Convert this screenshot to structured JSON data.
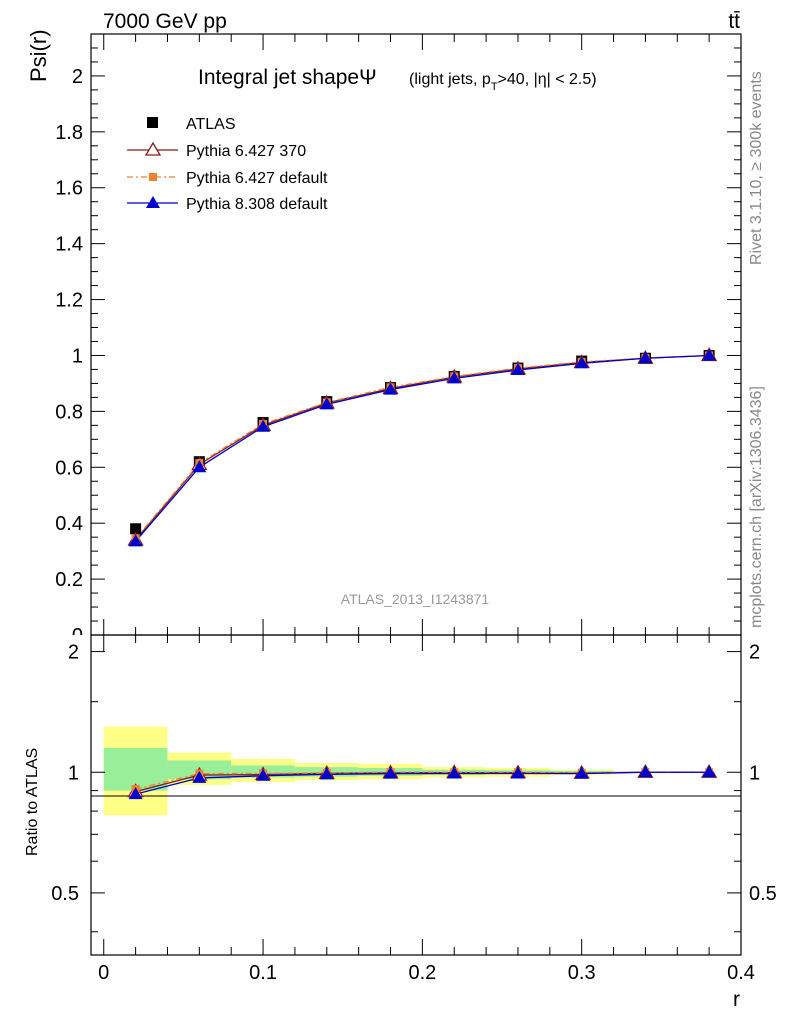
{
  "header": {
    "energy_label": "7000 GeV pp",
    "process_label": "tt̄"
  },
  "side_labels": {
    "rivet": "Rivet 3.1.10, ≥ 300k events",
    "mcplots": "mcplots.cern.ch [arXiv:1306.3436]"
  },
  "chart_data": [
    {
      "type": "scatter",
      "panel": "main",
      "title_main": "Integral jet shape",
      "title_symbol": "Ψ",
      "title_cuts": "(light jets, p",
      "title_cuts_sub": "T",
      "title_cuts_rest": ">40, |η| < 2.5)",
      "ylabel": "Psi(r)",
      "xlabel": "",
      "watermark": "ATLAS_2013_I1243871",
      "xlim": [
        -0.008,
        0.4
      ],
      "ylim": [
        0,
        2.15
      ],
      "grid": false,
      "legend_position": "top-left",
      "x_ticks": [
        0,
        0.1,
        0.2,
        0.3,
        0.4
      ],
      "y_ticks": [
        0.2,
        0.4,
        0.6,
        0.8,
        1,
        1.2,
        1.4,
        1.6,
        1.8,
        2
      ],
      "x": [
        0.02,
        0.06,
        0.1,
        0.14,
        0.18,
        0.22,
        0.26,
        0.3,
        0.34,
        0.38
      ],
      "series": [
        {
          "name": "ATLAS",
          "marker": "square",
          "color": "#000000",
          "values": [
            0.38,
            0.62,
            0.76,
            0.835,
            0.885,
            0.925,
            0.955,
            0.98,
            0.99,
            1.0
          ]
        },
        {
          "name": "Pythia 6.427 370",
          "marker": "triangle-open",
          "color": "#8b1a1a",
          "values": [
            0.34,
            0.61,
            0.75,
            0.83,
            0.882,
            0.923,
            0.952,
            0.975,
            0.99,
            1.0
          ]
        },
        {
          "name": "Pythia 6.427 default",
          "marker": "square-small",
          "color": "#f08030",
          "dash": "dashdot",
          "values": [
            0.345,
            0.615,
            0.755,
            0.832,
            0.886,
            0.925,
            0.955,
            0.977,
            0.991,
            1.0
          ]
        },
        {
          "name": "Pythia 8.308 default",
          "marker": "triangle",
          "color": "#0000cc",
          "values": [
            0.335,
            0.6,
            0.745,
            0.825,
            0.878,
            0.918,
            0.948,
            0.972,
            0.99,
            1.0
          ]
        }
      ]
    },
    {
      "type": "scatter",
      "panel": "ratio",
      "ylabel": "Ratio to ATLAS",
      "xlabel": "r",
      "xlim": [
        -0.008,
        0.4
      ],
      "ylim": [
        0.35,
        2.2
      ],
      "grid": false,
      "x_ticks": [
        0,
        0.1,
        0.2,
        0.3,
        0.4
      ],
      "y_ticks": [
        0.5,
        1,
        2
      ],
      "bins": [
        [
          0,
          0.04
        ],
        [
          0.04,
          0.08
        ],
        [
          0.08,
          0.12
        ],
        [
          0.12,
          0.16
        ],
        [
          0.16,
          0.2
        ],
        [
          0.2,
          0.24
        ],
        [
          0.24,
          0.28
        ],
        [
          0.28,
          0.32
        ],
        [
          0.32,
          0.36
        ],
        [
          0.36,
          0.4
        ]
      ],
      "band_inner": [
        [
          0.9,
          1.15
        ],
        [
          0.96,
          1.07
        ],
        [
          0.97,
          1.04
        ],
        [
          0.975,
          1.03
        ],
        [
          0.98,
          1.025
        ],
        [
          0.985,
          1.015
        ],
        [
          0.99,
          1.012
        ],
        [
          0.993,
          1.008
        ],
        [
          0.997,
          1.003
        ],
        [
          1.0,
          1.0
        ]
      ],
      "band_outer": [
        [
          0.78,
          1.3
        ],
        [
          0.93,
          1.12
        ],
        [
          0.945,
          1.08
        ],
        [
          0.955,
          1.055
        ],
        [
          0.96,
          1.05
        ],
        [
          0.97,
          1.03
        ],
        [
          0.975,
          1.025
        ],
        [
          0.985,
          1.015
        ],
        [
          0.995,
          1.005
        ],
        [
          1.0,
          1.0
        ]
      ],
      "x": [
        0.02,
        0.06,
        0.1,
        0.14,
        0.18,
        0.22,
        0.26,
        0.3,
        0.34,
        0.38
      ],
      "series": [
        {
          "name": "Pythia 6.427 370",
          "color": "#8b1a1a",
          "values": [
            0.895,
            0.984,
            0.987,
            0.994,
            0.997,
            0.998,
            0.997,
            0.995,
            1.0,
            1.0
          ]
        },
        {
          "name": "Pythia 6.427 default",
          "color": "#f08030",
          "values": [
            0.908,
            0.992,
            0.993,
            0.996,
            1.001,
            1.0,
            1.0,
            0.997,
            1.001,
            1.0
          ]
        },
        {
          "name": "Pythia 8.308 default",
          "color": "#0000cc",
          "values": [
            0.882,
            0.968,
            0.98,
            0.988,
            0.992,
            0.993,
            0.993,
            0.992,
            1.0,
            1.0
          ]
        }
      ]
    }
  ]
}
